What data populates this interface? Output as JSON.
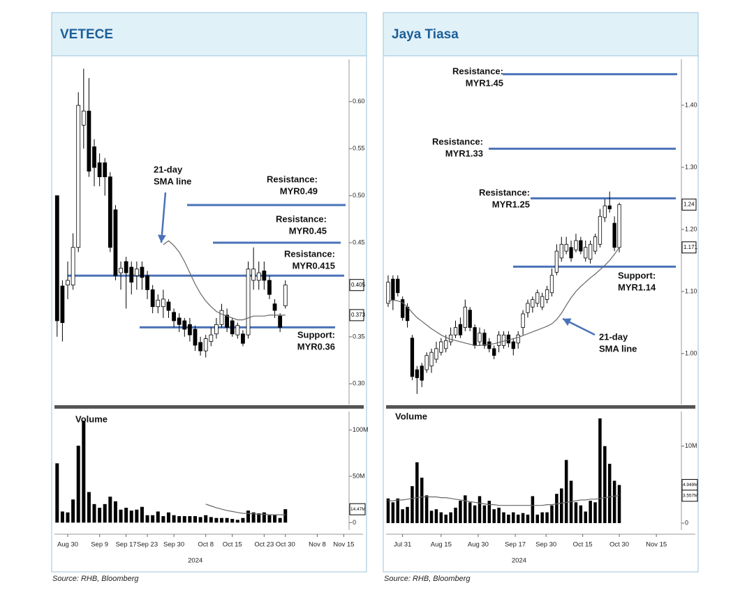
{
  "chart_data": [
    {
      "type": "candlestick",
      "title": "VETECE",
      "source": "Source: RHB, Bloomberg",
      "x_label": "2024",
      "xlim": [
        -0.5,
        55
      ],
      "xticks": [
        {
          "value": 2,
          "label": "Aug 30"
        },
        {
          "value": 8,
          "label": "Sep 9"
        },
        {
          "value": 13,
          "label": "Sep 17"
        },
        {
          "value": 17,
          "label": "Sep 23"
        },
        {
          "value": 22,
          "label": "Sep 30"
        },
        {
          "value": 28,
          "label": "Oct 8"
        },
        {
          "value": 33,
          "label": "Oct 15"
        },
        {
          "value": 39,
          "label": "Oct 23"
        },
        {
          "value": 43,
          "label": "Oct 30"
        },
        {
          "value": 49,
          "label": "Nov 8"
        },
        {
          "value": 54,
          "label": "Nov 15"
        }
      ],
      "ylim": [
        0.278,
        0.645
      ],
      "yticks": [
        {
          "value": 0.3,
          "label": "0.30"
        },
        0.35,
        0.45,
        {
          "value": 0.5,
          "label": "0.50"
        },
        0.55,
        {
          "value": 0.6,
          "label": "0.60"
        }
      ],
      "up_color": "#ffffff",
      "down_color": "#000000",
      "level_color": "#4a72b8",
      "sma_color": "#666666",
      "open": [
        0.5,
        0.404,
        0.405,
        0.405,
        0.445,
        0.575,
        0.59,
        0.552,
        0.535,
        0.535,
        0.52,
        0.485,
        0.418,
        0.43,
        0.424,
        0.415,
        0.424,
        0.415,
        0.4,
        0.382,
        0.382,
        0.387,
        0.376,
        0.37,
        0.367,
        0.363,
        0.358,
        0.344,
        0.335,
        0.345,
        0.353,
        0.363,
        0.373,
        0.367,
        0.352,
        0.353,
        0.352,
        0.41,
        0.41,
        0.42,
        0.41,
        0.385,
        0.372,
        0.383
      ],
      "high": [
        0.5,
        0.41,
        0.43,
        0.46,
        0.61,
        0.635,
        0.625,
        0.56,
        0.545,
        0.54,
        0.525,
        0.49,
        0.43,
        0.435,
        0.43,
        0.43,
        0.43,
        0.42,
        0.405,
        0.395,
        0.4,
        0.39,
        0.38,
        0.375,
        0.37,
        0.37,
        0.362,
        0.35,
        0.352,
        0.36,
        0.37,
        0.385,
        0.38,
        0.37,
        0.365,
        0.357,
        0.43,
        0.445,
        0.43,
        0.43,
        0.415,
        0.39,
        0.375,
        0.41
      ],
      "low": [
        0.35,
        0.345,
        0.39,
        0.4,
        0.44,
        0.55,
        0.52,
        0.51,
        0.51,
        0.5,
        0.44,
        0.41,
        0.4,
        0.38,
        0.395,
        0.4,
        0.4,
        0.39,
        0.375,
        0.375,
        0.37,
        0.37,
        0.36,
        0.355,
        0.35,
        0.345,
        0.335,
        0.33,
        0.328,
        0.34,
        0.348,
        0.36,
        0.355,
        0.35,
        0.348,
        0.34,
        0.348,
        0.4,
        0.4,
        0.4,
        0.39,
        0.37,
        0.355,
        0.38
      ],
      "close": [
        0.367,
        0.365,
        0.41,
        0.445,
        0.596,
        0.59,
        0.526,
        0.53,
        0.52,
        0.52,
        0.445,
        0.415,
        0.423,
        0.418,
        0.408,
        0.422,
        0.413,
        0.4,
        0.382,
        0.389,
        0.39,
        0.378,
        0.367,
        0.363,
        0.358,
        0.352,
        0.341,
        0.335,
        0.348,
        0.352,
        0.363,
        0.378,
        0.36,
        0.353,
        0.362,
        0.343,
        0.422,
        0.422,
        0.418,
        0.41,
        0.395,
        0.378,
        0.36,
        0.405
      ],
      "sma": [
        null,
        null,
        null,
        null,
        null,
        null,
        null,
        null,
        null,
        null,
        null,
        null,
        null,
        null,
        null,
        null,
        null,
        null,
        null,
        null,
        0.448,
        0.452,
        0.447,
        0.44,
        0.43,
        0.418,
        0.406,
        0.396,
        0.388,
        0.382,
        0.377,
        0.374,
        0.372,
        0.37,
        0.368,
        0.368,
        0.37,
        0.372,
        0.372,
        0.372,
        0.373,
        0.373,
        0.373,
        0.373
      ],
      "sma_label": [
        "21-day",
        "SMA line"
      ],
      "price_labels": [
        0.405,
        0.373
      ],
      "levels": [
        {
          "name": "Resistance:",
          "label": "MYR0.49",
          "value": 0.49
        },
        {
          "name": "Resistance:",
          "label": "MYR0.45",
          "value": 0.45
        },
        {
          "name": "Resistance:",
          "label": "MYR0.415",
          "value": 0.415
        },
        {
          "name": "Support:",
          "label": "MYR0.36",
          "value": 0.36
        }
      ],
      "volume": {
        "title": "Volume",
        "ylim": [
          -8,
          120
        ],
        "yticks": [
          0,
          {
            "value": 50,
            "label": "50M"
          },
          {
            "value": 100,
            "label": "100M"
          }
        ],
        "color": "#000000",
        "values": [
          64,
          12,
          11,
          25,
          83,
          110,
          33,
          20,
          16,
          20,
          28,
          23,
          14,
          16,
          13,
          14,
          17,
          8,
          8,
          12,
          7,
          11,
          8,
          7,
          7,
          7,
          7,
          6,
          8,
          6,
          5,
          5,
          5,
          4,
          3,
          5,
          13,
          11,
          10,
          11,
          8,
          8,
          5,
          14.47
        ],
        "sma": [
          null,
          null,
          null,
          null,
          null,
          null,
          null,
          null,
          null,
          null,
          null,
          null,
          null,
          null,
          null,
          null,
          null,
          null,
          null,
          null,
          null,
          null,
          null,
          null,
          null,
          null,
          null,
          null,
          20,
          18,
          16,
          14.5,
          13,
          12,
          11,
          10,
          10,
          9.5,
          9,
          9,
          8.5,
          8.5,
          8.5,
          8.5
        ],
        "labels": [
          {
            "value": 14.47,
            "label": "14.47M"
          }
        ]
      }
    },
    {
      "type": "candlestick",
      "title": "Jaya Tiasa",
      "source": "Source: RHB, Bloomberg",
      "x_label": "2024",
      "xlim": [
        -0.5,
        60.9
      ],
      "xticks": [
        {
          "value": 3,
          "label": "Jul 31"
        },
        {
          "value": 11,
          "label": "Aug 15"
        },
        {
          "value": 18.7,
          "label": "Aug 30"
        },
        {
          "value": 26.4,
          "label": "Sep 17"
        },
        {
          "value": 32.8,
          "label": "Sep 30"
        },
        {
          "value": 40.4,
          "label": "Oct 15"
        },
        {
          "value": 48,
          "label": "Oct 30"
        },
        {
          "value": 55.7,
          "label": "Nov 15"
        }
      ],
      "ylim": [
        0.918,
        1.474
      ],
      "yticks": [
        {
          "value": 1.0,
          "label": "1.00"
        },
        {
          "value": 1.1,
          "label": "1.10"
        },
        {
          "value": 1.2,
          "label": "1.20"
        },
        {
          "value": 1.3,
          "label": "1.30"
        },
        {
          "value": 1.4,
          "label": "1.40"
        }
      ],
      "up_color": "#ffffff",
      "down_color": "#000000",
      "level_color": "#4a72b8",
      "sma_color": "#666666",
      "open": [
        1.081,
        1.12,
        1.12,
        1.087,
        1.075,
        1.025,
        0.974,
        0.98,
        0.974,
        0.98,
        0.991,
        1.002,
        1.008,
        1.019,
        1.03,
        1.047,
        1.042,
        1.07,
        1.042,
        1.019,
        1.033,
        1.019,
        1.008,
        1.013,
        1.013,
        1.03,
        1.019,
        1.017,
        1.042,
        1.066,
        1.075,
        1.081,
        1.075,
        1.087,
        1.098,
        1.131,
        1.154,
        1.165,
        1.171,
        1.167,
        1.182,
        1.154,
        1.152,
        1.165,
        1.176,
        1.219,
        1.238,
        1.21,
        1.171
      ],
      "high": [
        1.126,
        1.126,
        1.126,
        1.092,
        1.081,
        1.03,
        0.98,
        0.985,
        1.002,
        1.008,
        1.019,
        1.025,
        1.03,
        1.042,
        1.053,
        1.058,
        1.087,
        1.075,
        1.047,
        1.042,
        1.039,
        1.025,
        1.013,
        1.036,
        1.036,
        1.036,
        1.025,
        1.036,
        1.07,
        1.087,
        1.092,
        1.103,
        1.098,
        1.109,
        1.137,
        1.176,
        1.188,
        1.188,
        1.182,
        1.193,
        1.188,
        1.182,
        1.182,
        1.193,
        1.233,
        1.249,
        1.261,
        1.221,
        1.243
      ],
      "low": [
        1.075,
        1.07,
        1.092,
        1.053,
        1.042,
        0.957,
        0.935,
        0.946,
        0.969,
        0.969,
        0.985,
        0.997,
        1.002,
        1.013,
        1.025,
        1.025,
        1.036,
        1.036,
        1.008,
        1.013,
        1.008,
        1.002,
        0.991,
        1.002,
        1.008,
        1.01,
        0.997,
        1.008,
        1.03,
        1.058,
        1.066,
        1.075,
        1.07,
        1.081,
        1.092,
        1.126,
        1.148,
        1.16,
        1.148,
        1.163,
        1.16,
        1.148,
        1.145,
        1.16,
        1.171,
        1.212,
        1.227,
        1.165,
        1.163
      ],
      "close": [
        1.115,
        1.087,
        1.098,
        1.058,
        1.053,
        0.963,
        0.961,
        0.957,
        0.997,
        1.002,
        1.008,
        1.019,
        1.021,
        1.03,
        1.042,
        1.03,
        1.075,
        1.042,
        1.013,
        1.033,
        1.013,
        1.008,
        0.997,
        1.03,
        1.03,
        1.017,
        1.008,
        1.03,
        1.064,
        1.081,
        1.087,
        1.098,
        1.092,
        1.103,
        1.126,
        1.165,
        1.176,
        1.176,
        1.154,
        1.182,
        1.165,
        1.171,
        1.176,
        1.188,
        1.221,
        1.238,
        1.233,
        1.171,
        1.24
      ],
      "sma": [
        1.084,
        1.086,
        1.085,
        1.082,
        1.075,
        1.066,
        1.058,
        1.052,
        1.046,
        1.04,
        1.035,
        1.03,
        1.026,
        1.023,
        1.021,
        1.019,
        1.017,
        1.015,
        1.013,
        1.013,
        1.014,
        1.015,
        1.016,
        1.018,
        1.02,
        1.022,
        1.024,
        1.026,
        1.029,
        1.032,
        1.035,
        1.038,
        1.041,
        1.044,
        1.048,
        1.055,
        1.065,
        1.078,
        1.09,
        1.1,
        1.108,
        1.115,
        1.122,
        1.128,
        1.135,
        1.142,
        1.15,
        1.16,
        1.171
      ],
      "sma_label": [
        "21-day",
        "SMA line"
      ],
      "price_labels": [
        1.24,
        1.171
      ],
      "levels": [
        {
          "name": "Resistance:",
          "label": "MYR1.45",
          "value": 1.45
        },
        {
          "name": "Resistance:",
          "label": "MYR1.33",
          "value": 1.33
        },
        {
          "name": "Resistance:",
          "label": "MYR1.25",
          "value": 1.25
        },
        {
          "name": "Support:",
          "label": "MYR1.14",
          "value": 1.14
        }
      ],
      "volume": {
        "title": "Volume",
        "ylim": [
          -0.9,
          14.5
        ],
        "yticks": [
          0,
          {
            "value": 10,
            "label": "10M"
          }
        ],
        "color": "#000000",
        "values": [
          3.2,
          2.7,
          3.2,
          1.8,
          2.1,
          4.8,
          7.9,
          5.9,
          3.6,
          1.6,
          1.8,
          1.4,
          1.1,
          1.4,
          2.0,
          2.9,
          3.6,
          2.7,
          2.3,
          3.5,
          2.3,
          2.9,
          1.8,
          2.0,
          1.4,
          1.1,
          1.4,
          1.1,
          1.3,
          1.1,
          3.5,
          1.1,
          1.4,
          1.4,
          2.3,
          3.8,
          4.5,
          8.2,
          5.5,
          2.7,
          2.3,
          1.5,
          2.9,
          2.7,
          13.6,
          10.0,
          7.7,
          5.5,
          4.949
        ],
        "sma": [
          2.9,
          2.9,
          3.0,
          3.0,
          3.1,
          3.2,
          3.3,
          3.4,
          3.4,
          3.4,
          3.4,
          3.3,
          3.3,
          3.2,
          3.1,
          3.0,
          2.9,
          2.8,
          2.7,
          2.6,
          2.5,
          2.4,
          2.4,
          2.3,
          2.3,
          2.3,
          2.3,
          2.3,
          2.3,
          2.3,
          2.3,
          2.3,
          2.3,
          2.4,
          2.4,
          2.5,
          2.6,
          2.7,
          2.8,
          2.9,
          3.0,
          3.0,
          3.1,
          3.1,
          3.2,
          3.3,
          3.4,
          3.5,
          3.557
        ],
        "labels": [
          {
            "value": 4.949,
            "label": "4.949M"
          },
          {
            "value": 3.557,
            "label": "3.557M"
          }
        ]
      }
    }
  ]
}
